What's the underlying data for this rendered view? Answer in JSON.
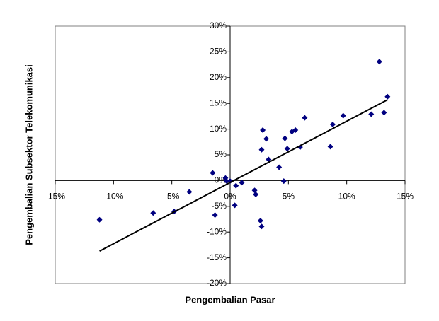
{
  "chart_data": {
    "type": "scatter",
    "x_label": "Pengembalian Pasar",
    "y_label": "Pengembalian Subsektor Telekomunikasi",
    "xlim": [
      -15,
      15
    ],
    "ylim": [
      -20,
      30
    ],
    "xticks": [
      {
        "value": -15,
        "label": "-15%"
      },
      {
        "value": -10,
        "label": "-10%"
      },
      {
        "value": -5,
        "label": "-5%"
      },
      {
        "value": 0,
        "label": "0%"
      },
      {
        "value": 5,
        "label": "5%"
      },
      {
        "value": 10,
        "label": "10%"
      },
      {
        "value": 15,
        "label": "15%"
      }
    ],
    "yticks": [
      {
        "value": -20,
        "label": "-20%"
      },
      {
        "value": -15,
        "label": "-15%"
      },
      {
        "value": -10,
        "label": "-10%"
      },
      {
        "value": -5,
        "label": "-5%"
      },
      {
        "value": 0,
        "label": "0%"
      },
      {
        "value": 5,
        "label": "5%"
      },
      {
        "value": 10,
        "label": "10%"
      },
      {
        "value": 15,
        "label": "15%"
      },
      {
        "value": 20,
        "label": "20%"
      },
      {
        "value": 25,
        "label": "25%"
      },
      {
        "value": 30,
        "label": "30%"
      }
    ],
    "grid": false,
    "color": "#000080",
    "x": [
      -11.2,
      -6.6,
      -4.8,
      -3.5,
      -1.5,
      -1.3,
      -0.4,
      -0.3,
      0,
      0.5,
      0.4,
      1.0,
      2.1,
      2.2,
      2.6,
      2.7,
      2.7,
      2.8,
      3.1,
      3.3,
      4.2,
      4.6,
      4.7,
      4.9,
      5.3,
      5.6,
      6.0,
      6.4,
      8.6,
      8.8,
      9.7,
      12.1,
      12.8,
      13.2,
      13.5
    ],
    "y": [
      -7.6,
      -6.3,
      -6.0,
      -2.2,
      1.5,
      -6.7,
      0.5,
      -0.1,
      -0.1,
      -1.0,
      -4.8,
      -0.4,
      -1.9,
      -2.7,
      -7.8,
      -8.9,
      6.0,
      9.8,
      8.1,
      4.1,
      2.6,
      -0.1,
      8.2,
      6.2,
      9.5,
      9.8,
      6.5,
      12.2,
      6.6,
      10.9,
      12.6,
      12.9,
      23.1,
      13.2,
      16.3
    ],
    "trendline": {
      "x": [
        -11.2,
        13.5
      ],
      "y": [
        -13.7,
        15.7
      ],
      "color": "#000000"
    }
  }
}
